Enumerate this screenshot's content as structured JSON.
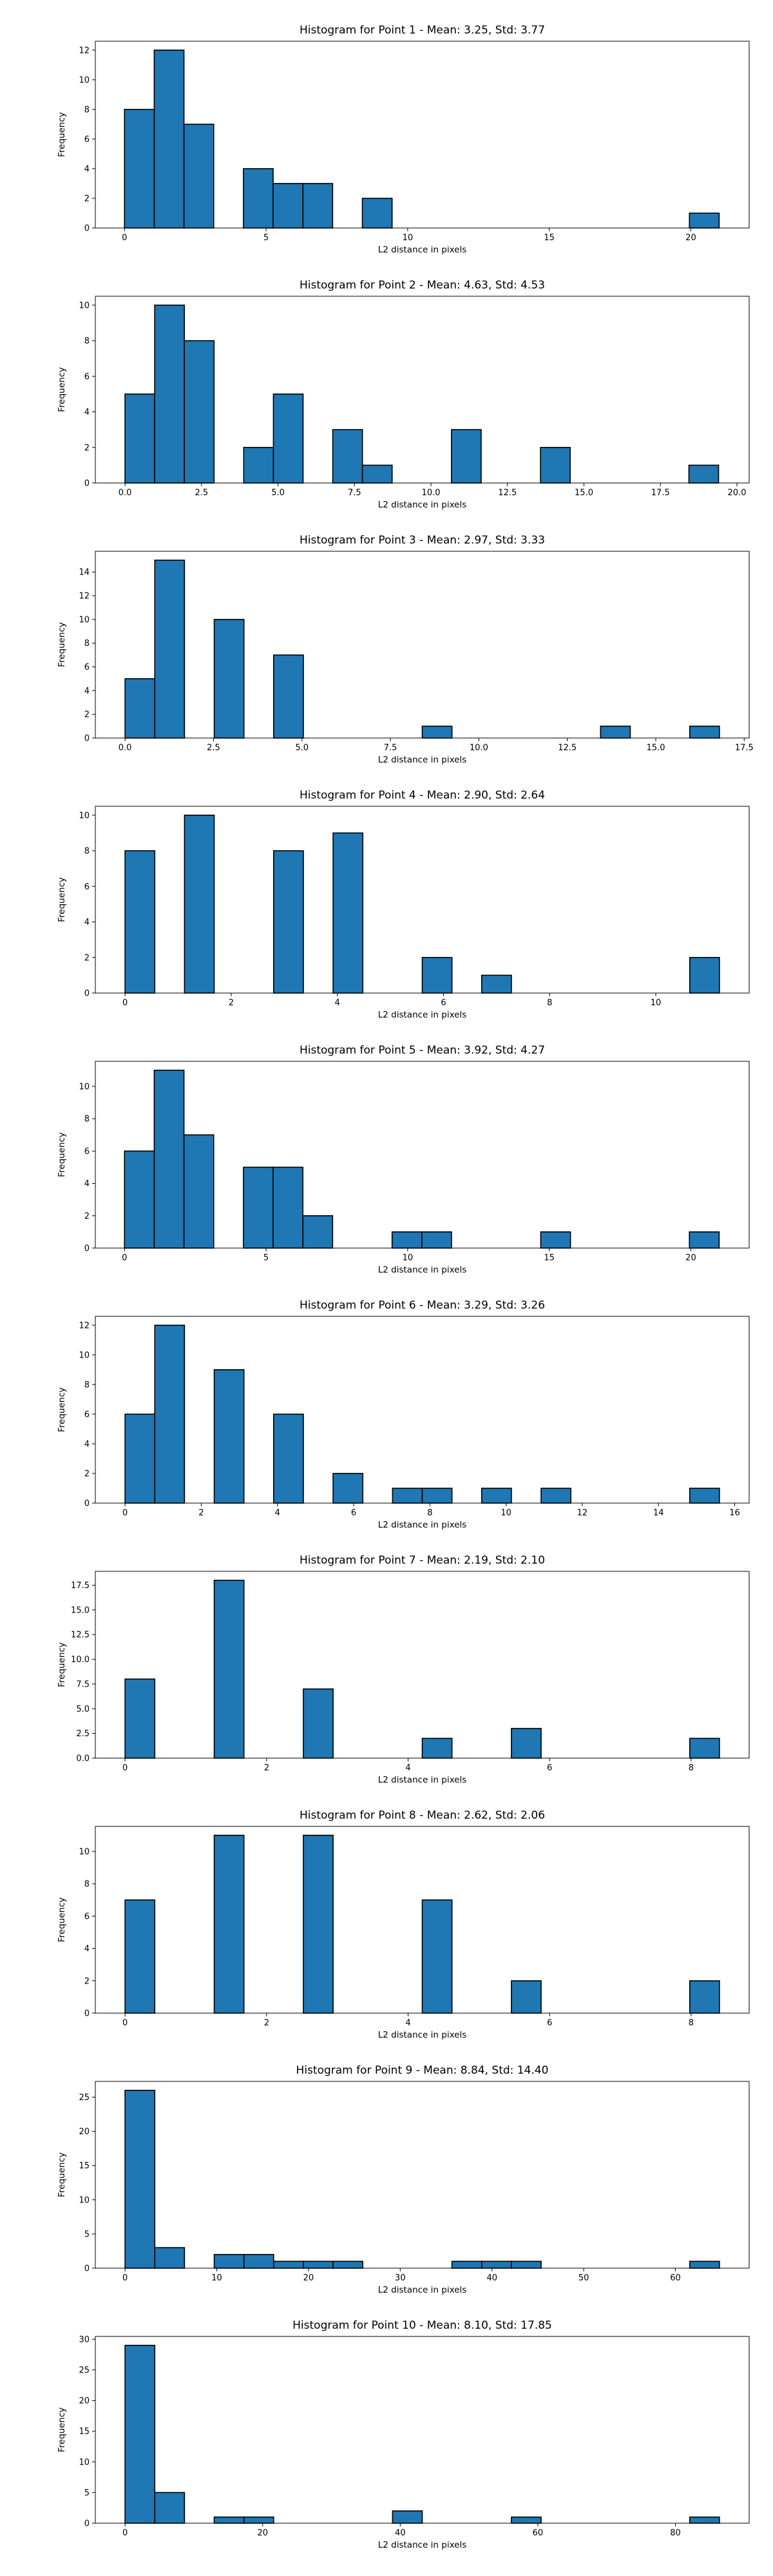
{
  "page": {
    "background": "#ffffff"
  },
  "style": {
    "bar_fill": "#1f77b4",
    "bar_edge": "#000000"
  },
  "chart_data": [
    {
      "type": "bar",
      "title": "Histogram for Point 1 - Mean: 3.25, Std: 3.77",
      "xlabel": "L2 distance in pixels",
      "ylabel": "Frequency",
      "xlim": [
        -1.03,
        22.06
      ],
      "ylim": [
        0,
        12.6
      ],
      "xticks": [
        0,
        5,
        10,
        15,
        20
      ],
      "xtick_labels": [
        "0",
        "5",
        "10",
        "15",
        "20"
      ],
      "yticks": [
        0,
        2,
        4,
        6,
        8,
        10,
        12
      ],
      "ytick_labels": [
        "0",
        "2",
        "4",
        "6",
        "8",
        "10",
        "12"
      ],
      "bin_edges": [
        0,
        1.05,
        2.1,
        3.15,
        4.2,
        5.25,
        6.3,
        7.35,
        8.4,
        9.45,
        10.5,
        11.55,
        12.6,
        13.65,
        14.7,
        15.75,
        16.8,
        17.85,
        18.9,
        19.95,
        21.0
      ],
      "counts": [
        8,
        12,
        7,
        0,
        4,
        3,
        3,
        0,
        2,
        0,
        0,
        0,
        0,
        0,
        0,
        0,
        0,
        0,
        0,
        1
      ],
      "grid": false,
      "legend": "none"
    },
    {
      "type": "bar",
      "title": "Histogram for Point 2 - Mean: 4.63, Std: 4.53",
      "xlabel": "L2 distance in pixels",
      "ylabel": "Frequency",
      "xlim": [
        -0.97,
        20.4
      ],
      "ylim": [
        0,
        10.5
      ],
      "xticks": [
        0,
        2.5,
        5,
        7.5,
        10,
        12.5,
        15,
        17.5,
        20
      ],
      "xtick_labels": [
        "0.0",
        "2.5",
        "5.0",
        "7.5",
        "10.0",
        "12.5",
        "15.0",
        "17.5",
        "20.0"
      ],
      "yticks": [
        0,
        2,
        4,
        6,
        8,
        10
      ],
      "ytick_labels": [
        "0",
        "2",
        "4",
        "6",
        "8",
        "10"
      ],
      "bin_edges": [
        0,
        0.97,
        1.94,
        2.91,
        3.88,
        4.85,
        5.82,
        6.79,
        7.76,
        8.73,
        9.7,
        10.67,
        11.64,
        12.61,
        13.58,
        14.55,
        15.52,
        16.49,
        17.46,
        18.43,
        19.4
      ],
      "counts": [
        5,
        10,
        8,
        0,
        2,
        5,
        0,
        3,
        1,
        0,
        0,
        3,
        0,
        0,
        2,
        0,
        0,
        0,
        0,
        1
      ],
      "grid": false,
      "legend": "none"
    },
    {
      "type": "bar",
      "title": "Histogram for Point 3 - Mean: 2.97, Std: 3.33",
      "xlabel": "L2 distance in pixels",
      "ylabel": "Frequency",
      "xlim": [
        -0.84,
        17.64
      ],
      "ylim": [
        0,
        15.75
      ],
      "xticks": [
        0,
        2.5,
        5,
        7.5,
        10,
        12.5,
        15,
        17.5
      ],
      "xtick_labels": [
        "0.0",
        "2.5",
        "5.0",
        "7.5",
        "10.0",
        "12.5",
        "15.0",
        "17.5"
      ],
      "yticks": [
        0,
        2,
        4,
        6,
        8,
        10,
        12,
        14
      ],
      "ytick_labels": [
        "0",
        "2",
        "4",
        "6",
        "8",
        "10",
        "12",
        "14"
      ],
      "bin_edges": [
        0,
        0.84,
        1.68,
        2.52,
        3.36,
        4.2,
        5.04,
        5.88,
        6.72,
        7.56,
        8.4,
        9.24,
        10.08,
        10.92,
        11.76,
        12.6,
        13.44,
        14.28,
        15.12,
        15.96,
        16.8
      ],
      "counts": [
        5,
        15,
        0,
        10,
        0,
        7,
        0,
        0,
        0,
        0,
        1,
        0,
        0,
        0,
        0,
        0,
        1,
        0,
        0,
        1
      ],
      "grid": false,
      "legend": "none"
    },
    {
      "type": "bar",
      "title": "Histogram for Point 4 - Mean: 2.90, Std: 2.64",
      "xlabel": "L2 distance in pixels",
      "ylabel": "Frequency",
      "xlim": [
        -0.56,
        11.76
      ],
      "ylim": [
        0,
        10.5
      ],
      "xticks": [
        0,
        2,
        4,
        6,
        8,
        10
      ],
      "xtick_labels": [
        "0",
        "2",
        "4",
        "6",
        "8",
        "10"
      ],
      "yticks": [
        0,
        2,
        4,
        6,
        8,
        10
      ],
      "ytick_labels": [
        "0",
        "2",
        "4",
        "6",
        "8",
        "10"
      ],
      "bin_edges": [
        0,
        0.56,
        1.12,
        1.68,
        2.24,
        2.8,
        3.36,
        3.92,
        4.48,
        5.04,
        5.6,
        6.16,
        6.72,
        7.28,
        7.84,
        8.4,
        8.96,
        9.52,
        10.08,
        10.64,
        11.2
      ],
      "counts": [
        8,
        0,
        10,
        0,
        0,
        8,
        0,
        9,
        0,
        0,
        2,
        0,
        1,
        0,
        0,
        0,
        0,
        0,
        0,
        2
      ],
      "grid": false,
      "legend": "none"
    },
    {
      "type": "bar",
      "title": "Histogram for Point 5 - Mean: 3.92, Std: 4.27",
      "xlabel": "L2 distance in pixels",
      "ylabel": "Frequency",
      "xlim": [
        -1.03,
        22.06
      ],
      "ylim": [
        0,
        11.55
      ],
      "xticks": [
        0,
        5,
        10,
        15,
        20
      ],
      "xtick_labels": [
        "0",
        "5",
        "10",
        "15",
        "20"
      ],
      "yticks": [
        0,
        2,
        4,
        6,
        8,
        10
      ],
      "ytick_labels": [
        "0",
        "2",
        "4",
        "6",
        "8",
        "10"
      ],
      "bin_edges": [
        0,
        1.05,
        2.1,
        3.15,
        4.2,
        5.25,
        6.3,
        7.35,
        8.4,
        9.45,
        10.5,
        11.55,
        12.6,
        13.65,
        14.7,
        15.75,
        16.8,
        17.85,
        18.9,
        19.95,
        21.0
      ],
      "counts": [
        6,
        11,
        7,
        0,
        5,
        5,
        2,
        0,
        0,
        1,
        1,
        0,
        0,
        0,
        1,
        0,
        0,
        0,
        0,
        1
      ],
      "grid": false,
      "legend": "none"
    },
    {
      "type": "bar",
      "title": "Histogram for Point 6 - Mean: 3.29, Std: 3.26",
      "xlabel": "L2 distance in pixels",
      "ylabel": "Frequency",
      "xlim": [
        -0.78,
        16.38
      ],
      "ylim": [
        0,
        12.6
      ],
      "xticks": [
        0,
        2,
        4,
        6,
        8,
        10,
        12,
        14,
        16
      ],
      "xtick_labels": [
        "0",
        "2",
        "4",
        "6",
        "8",
        "10",
        "12",
        "14",
        "16"
      ],
      "yticks": [
        0,
        2,
        4,
        6,
        8,
        10,
        12
      ],
      "ytick_labels": [
        "0",
        "2",
        "4",
        "6",
        "8",
        "10",
        "12"
      ],
      "bin_edges": [
        0,
        0.78,
        1.56,
        2.34,
        3.12,
        3.9,
        4.68,
        5.46,
        6.24,
        7.02,
        7.8,
        8.58,
        9.36,
        10.14,
        10.92,
        11.7,
        12.48,
        13.26,
        14.04,
        14.82,
        15.6
      ],
      "counts": [
        6,
        12,
        0,
        9,
        0,
        6,
        0,
        2,
        0,
        1,
        1,
        0,
        1,
        0,
        1,
        0,
        0,
        0,
        0,
        1
      ],
      "grid": false,
      "legend": "none"
    },
    {
      "type": "bar",
      "title": "Histogram for Point 7 - Mean: 2.19, Std: 2.10",
      "xlabel": "L2 distance in pixels",
      "ylabel": "Frequency",
      "xlim": [
        -0.42,
        8.82
      ],
      "ylim": [
        0,
        18.9
      ],
      "xticks": [
        0,
        2,
        4,
        6,
        8
      ],
      "xtick_labels": [
        "0",
        "2",
        "4",
        "6",
        "8"
      ],
      "yticks": [
        0,
        2.5,
        5,
        7.5,
        10,
        12.5,
        15,
        17.5
      ],
      "ytick_labels": [
        "0.0",
        "2.5",
        "5.0",
        "7.5",
        "10.0",
        "12.5",
        "15.0",
        "17.5"
      ],
      "bin_edges": [
        0,
        0.42,
        0.84,
        1.26,
        1.68,
        2.1,
        2.52,
        2.94,
        3.36,
        3.78,
        4.2,
        4.62,
        5.04,
        5.46,
        5.88,
        6.3,
        6.72,
        7.14,
        7.56,
        7.98,
        8.4
      ],
      "counts": [
        8,
        0,
        0,
        18,
        0,
        0,
        7,
        0,
        0,
        0,
        2,
        0,
        0,
        3,
        0,
        0,
        0,
        0,
        0,
        2
      ],
      "grid": false,
      "legend": "none"
    },
    {
      "type": "bar",
      "title": "Histogram for Point 8 - Mean: 2.62, Std: 2.06",
      "xlabel": "L2 distance in pixels",
      "ylabel": "Frequency",
      "xlim": [
        -0.42,
        8.82
      ],
      "ylim": [
        0,
        11.55
      ],
      "xticks": [
        0,
        2,
        4,
        6,
        8
      ],
      "xtick_labels": [
        "0",
        "2",
        "4",
        "6",
        "8"
      ],
      "yticks": [
        0,
        2,
        4,
        6,
        8,
        10
      ],
      "ytick_labels": [
        "0",
        "2",
        "4",
        "6",
        "8",
        "10"
      ],
      "bin_edges": [
        0,
        0.42,
        0.84,
        1.26,
        1.68,
        2.1,
        2.52,
        2.94,
        3.36,
        3.78,
        4.2,
        4.62,
        5.04,
        5.46,
        5.88,
        6.3,
        6.72,
        7.14,
        7.56,
        7.98,
        8.4
      ],
      "counts": [
        7,
        0,
        0,
        11,
        0,
        0,
        11,
        0,
        0,
        0,
        7,
        0,
        0,
        2,
        0,
        0,
        0,
        0,
        0,
        2
      ],
      "grid": false,
      "legend": "none"
    },
    {
      "type": "bar",
      "title": "Histogram for Point 9 - Mean: 8.84, Std: 14.40",
      "xlabel": "L2 distance in pixels",
      "ylabel": "Frequency",
      "xlim": [
        -3.24,
        68.04
      ],
      "ylim": [
        0,
        27.3
      ],
      "xticks": [
        0,
        10,
        20,
        30,
        40,
        50,
        60
      ],
      "xtick_labels": [
        "0",
        "10",
        "20",
        "30",
        "40",
        "50",
        "60"
      ],
      "yticks": [
        0,
        5,
        10,
        15,
        20,
        25
      ],
      "ytick_labels": [
        "0",
        "5",
        "10",
        "15",
        "20",
        "25"
      ],
      "bin_edges": [
        0,
        3.24,
        6.48,
        9.72,
        12.96,
        16.2,
        19.44,
        22.68,
        25.92,
        29.16,
        32.4,
        35.64,
        38.88,
        42.12,
        45.36,
        48.6,
        51.84,
        55.08,
        58.32,
        61.56,
        64.8
      ],
      "counts": [
        26,
        3,
        0,
        2,
        2,
        1,
        1,
        1,
        0,
        0,
        0,
        1,
        1,
        1,
        0,
        0,
        0,
        0,
        0,
        1
      ],
      "grid": false,
      "legend": "none"
    },
    {
      "type": "bar",
      "title": "Histogram for Point 10 - Mean: 8.10, Std: 17.85",
      "xlabel": "L2 distance in pixels",
      "ylabel": "Frequency",
      "xlim": [
        -4.32,
        90.72
      ],
      "ylim": [
        0,
        30.45
      ],
      "xticks": [
        0,
        20,
        40,
        60,
        80
      ],
      "xtick_labels": [
        "0",
        "20",
        "40",
        "60",
        "80"
      ],
      "yticks": [
        0,
        5,
        10,
        15,
        20,
        25,
        30
      ],
      "ytick_labels": [
        "0",
        "5",
        "10",
        "15",
        "20",
        "25",
        "30"
      ],
      "bin_edges": [
        0,
        4.32,
        8.64,
        12.96,
        17.28,
        21.6,
        25.92,
        30.24,
        34.56,
        38.88,
        43.2,
        47.52,
        51.84,
        56.16,
        60.48,
        64.8,
        69.12,
        73.44,
        77.76,
        82.08,
        86.4
      ],
      "counts": [
        29,
        5,
        0,
        1,
        1,
        0,
        0,
        0,
        0,
        2,
        0,
        0,
        0,
        1,
        0,
        0,
        0,
        0,
        0,
        1
      ],
      "grid": false,
      "legend": "none"
    }
  ]
}
